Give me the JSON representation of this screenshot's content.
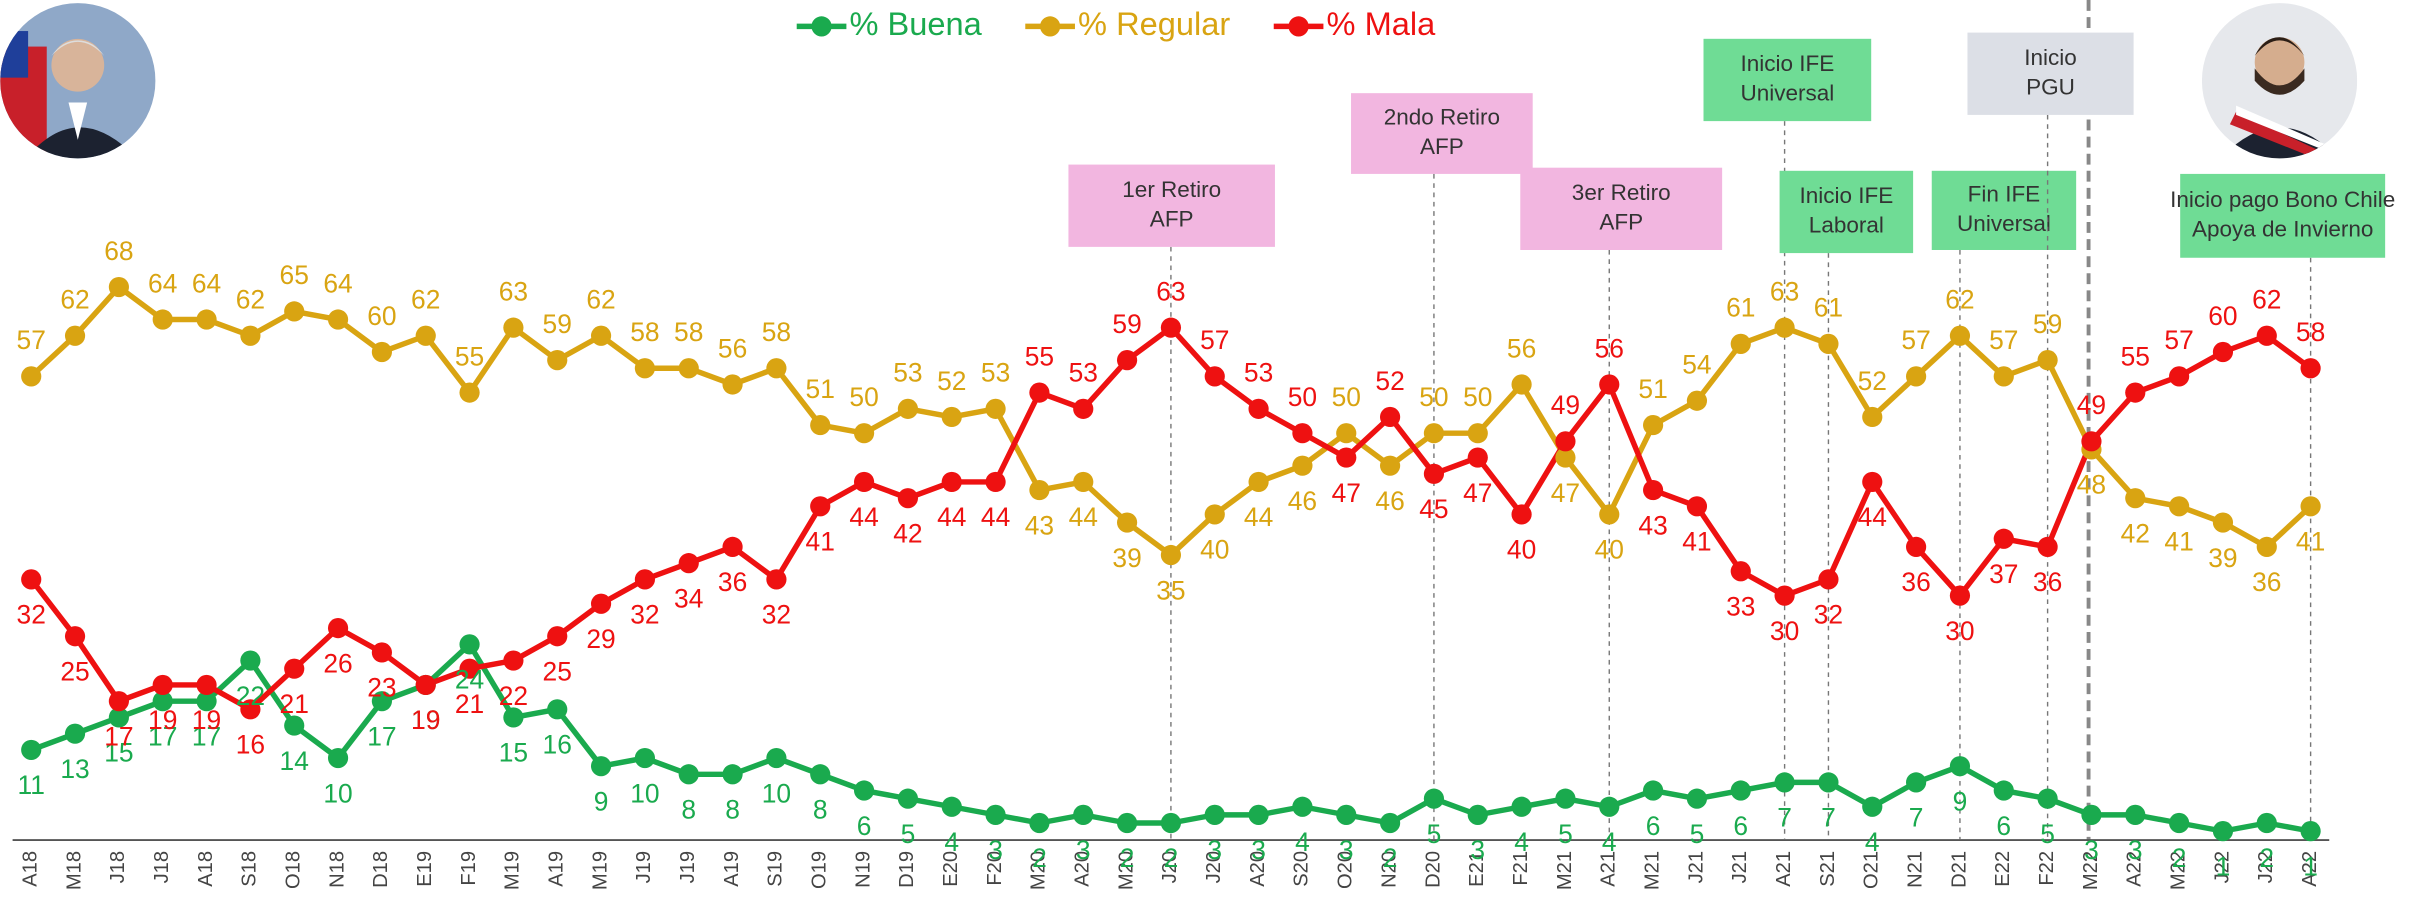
{
  "chart_data": {
    "type": "line",
    "categories": [
      "A18",
      "M18",
      "J18",
      "J18",
      "A18",
      "S18",
      "O18",
      "N18",
      "D18",
      "E19",
      "F19",
      "M19",
      "A19",
      "M19",
      "J19",
      "J19",
      "A19",
      "S19",
      "O19",
      "N19",
      "D19",
      "E20",
      "F20",
      "M20",
      "A20",
      "M20",
      "J20",
      "J20",
      "A20",
      "S20",
      "O20",
      "N20",
      "D20",
      "E21",
      "F21",
      "M21",
      "A21",
      "M21",
      "J21",
      "J21",
      "A21",
      "S21",
      "O21",
      "N21",
      "D21",
      "E22",
      "F22",
      "M22",
      "A22",
      "M22",
      "J22",
      "J22",
      "A22"
    ],
    "series": [
      {
        "name": "% Buena",
        "color": "#1aaa4e",
        "values": [
          11,
          13,
          15,
          17,
          17,
          22,
          14,
          10,
          17,
          19,
          24,
          15,
          16,
          9,
          10,
          8,
          8,
          10,
          8,
          6,
          5,
          4,
          3,
          2,
          3,
          2,
          2,
          3,
          3,
          4,
          3,
          2,
          5,
          3,
          4,
          5,
          4,
          6,
          5,
          6,
          7,
          7,
          4,
          7,
          9,
          6,
          5,
          3,
          3,
          2,
          1,
          2,
          1
        ]
      },
      {
        "name": "% Regular",
        "color": "#d9a412",
        "values": [
          57,
          62,
          68,
          64,
          64,
          62,
          65,
          64,
          60,
          62,
          55,
          63,
          59,
          62,
          58,
          58,
          56,
          58,
          51,
          50,
          53,
          52,
          53,
          43,
          44,
          39,
          35,
          40,
          44,
          46,
          50,
          46,
          50,
          50,
          56,
          47,
          40,
          51,
          54,
          61,
          63,
          61,
          52,
          57,
          62,
          57,
          59,
          48,
          42,
          41,
          39,
          36,
          41
        ]
      },
      {
        "name": "% Mala",
        "color": "#ee1111",
        "values": [
          32,
          25,
          17,
          19,
          19,
          16,
          21,
          26,
          23,
          19,
          21,
          22,
          25,
          29,
          32,
          34,
          36,
          32,
          41,
          44,
          42,
          44,
          44,
          55,
          53,
          59,
          63,
          57,
          53,
          50,
          47,
          52,
          45,
          47,
          40,
          49,
          56,
          43,
          41,
          33,
          30,
          32,
          44,
          36,
          30,
          37,
          36,
          49,
          55,
          57,
          60,
          62,
          58
        ]
      }
    ],
    "ylim": [
      0,
      70
    ],
    "legend": "top",
    "annotations": [
      {
        "lines": [
          "1er Retiro",
          "AFP"
        ],
        "color": "#f2b6e0"
      },
      {
        "lines": [
          "2ndo Retiro",
          "AFP"
        ],
        "color": "#f2b6e0"
      },
      {
        "lines": [
          "3er Retiro",
          "AFP"
        ],
        "color": "#f2b6e0"
      },
      {
        "lines": [
          "Inicio IFE",
          "Universal"
        ],
        "color": "#6fdc95"
      },
      {
        "lines": [
          "Inicio IFE",
          "Laboral"
        ],
        "color": "#6fdc95"
      },
      {
        "lines": [
          "Fin IFE",
          "Universal"
        ],
        "color": "#6fdc95"
      },
      {
        "lines": [
          "Inicio",
          "PGU"
        ],
        "color": "#dcdfe6"
      },
      {
        "lines": [
          "Inicio pago Bono Chile",
          "Apoya de Invierno"
        ],
        "color": "#6fdc95"
      }
    ]
  }
}
